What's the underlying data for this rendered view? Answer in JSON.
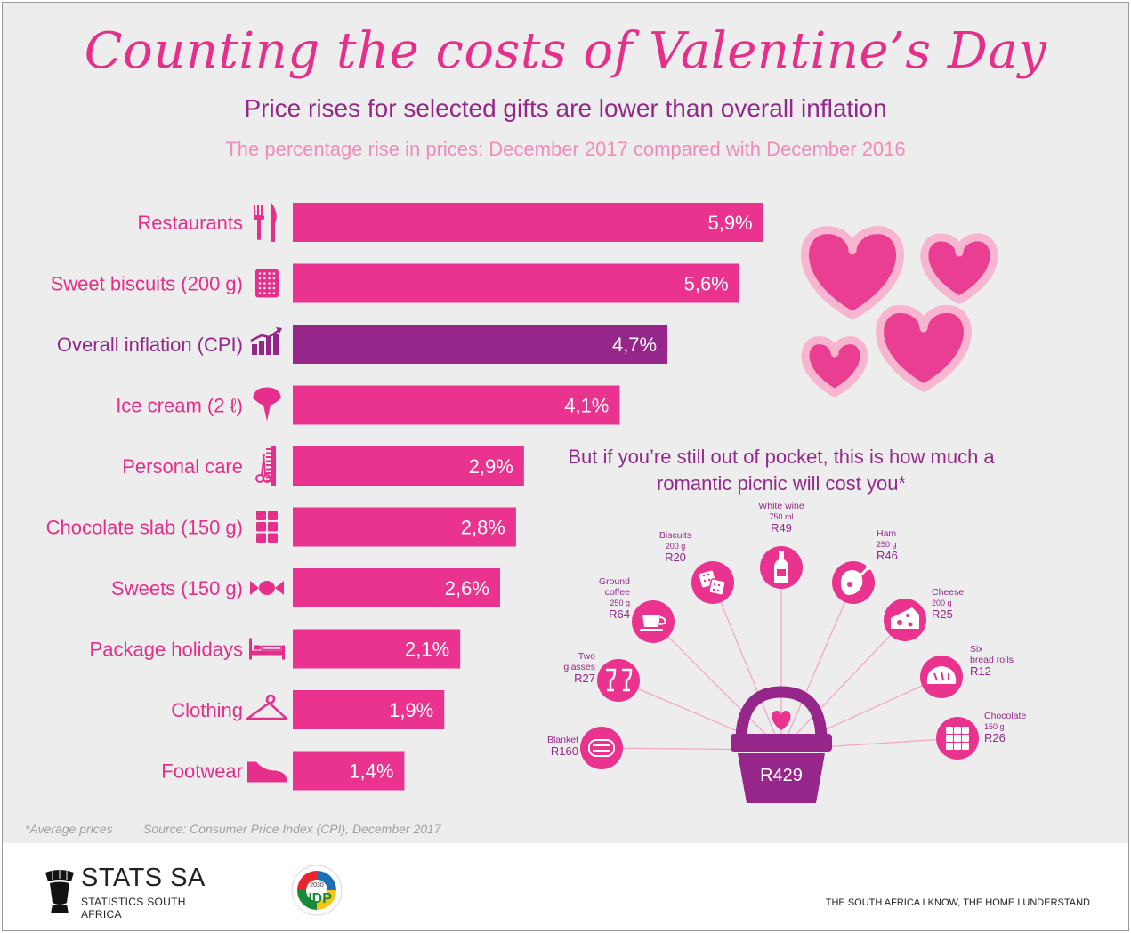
{
  "header": {
    "title": "Counting the costs of Valentine’s Day",
    "subtitle": "Price rises for selected gifts are lower than overall inflation",
    "description": "The percentage rise in prices: December 2017 compared with December 2016"
  },
  "colors": {
    "bar": "#e9338f",
    "highlight_bar": "#96268a",
    "label": "#e62e8b",
    "highlight_label": "#94288a",
    "background": "#ededed",
    "heart_fill": "#ea3e92",
    "heart_border": "#f7b5d0",
    "picnic_circle": "#e9338f",
    "spoke": "#f4a6c6"
  },
  "chart_data": {
    "type": "bar",
    "orientation": "horizontal",
    "title": "The percentage rise in prices: December 2017 compared with December 2016",
    "xlabel": "",
    "ylabel": "",
    "xlim": [
      0,
      5.9
    ],
    "categories": [
      "Restaurants",
      "Sweet biscuits (200 g)",
      "Overall inflation (CPI)",
      "Ice cream (2 ℓ)",
      "Personal care",
      "Chocolate slab (150 g)",
      "Sweets (150 g)",
      "Package holidays",
      "Clothing",
      "Footwear"
    ],
    "values": [
      5.9,
      5.6,
      4.7,
      4.1,
      2.9,
      2.8,
      2.6,
      2.1,
      1.9,
      1.4
    ],
    "value_labels": [
      "5,9%",
      "5,6%",
      "4,7%",
      "4,1%",
      "2,9%",
      "2,8%",
      "2,6%",
      "2,1%",
      "1,9%",
      "1,4%"
    ],
    "icons": [
      "cutlery-icon",
      "biscuit-icon",
      "rising-chart-icon",
      "ice-cream-icon",
      "comb-scissors-icon",
      "chocolate-slab-icon",
      "sweet-icon",
      "bed-icon",
      "hanger-icon",
      "shoe-icon"
    ],
    "highlight": "Overall inflation (CPI)"
  },
  "picnic": {
    "heading": "But if you’re still out of pocket, this is how much a romantic picnic will cost you*",
    "total": "R429",
    "items": [
      {
        "name": "Blanket",
        "lines": [
          "Blanket"
        ],
        "price": "R160",
        "icon": "blanket-icon"
      },
      {
        "name": "Two glasses",
        "lines": [
          "Two",
          "glasses"
        ],
        "price": "R27",
        "icon": "wine-glasses-icon"
      },
      {
        "name": "Ground coffee",
        "lines": [
          "Ground",
          "coffee",
          "250 g"
        ],
        "price": "R64",
        "icon": "coffee-cup-icon"
      },
      {
        "name": "Biscuits",
        "lines": [
          "Biscuits",
          "200 g"
        ],
        "price": "R20",
        "icon": "biscuits-icon"
      },
      {
        "name": "White wine",
        "lines": [
          "White wine",
          "750 ml"
        ],
        "price": "R49",
        "icon": "wine-bottle-icon"
      },
      {
        "name": "Ham",
        "lines": [
          "Ham",
          "250 g"
        ],
        "price": "R46",
        "icon": "ham-icon"
      },
      {
        "name": "Cheese",
        "lines": [
          "Cheese",
          "200 g"
        ],
        "price": "R25",
        "icon": "cheese-icon"
      },
      {
        "name": "Six bread rolls",
        "lines": [
          "Six",
          "bread rolls"
        ],
        "price": "R12",
        "icon": "bread-icon"
      },
      {
        "name": "Chocolate",
        "lines": [
          "Chocolate",
          "150 g"
        ],
        "price": "R26",
        "icon": "chocolate-icon"
      }
    ]
  },
  "footnotes": {
    "note": "*Average prices",
    "source": "Source: Consumer Price Index (CPI), December 2017"
  },
  "footer": {
    "brand": "STATS SA",
    "brand_sub": "STATISTICS SOUTH AFRICA",
    "ndp_label": "NDP",
    "ndp_year": "2030",
    "tagline": "THE SOUTH AFRICA I KNOW, THE HOME I UNDERSTAND"
  }
}
